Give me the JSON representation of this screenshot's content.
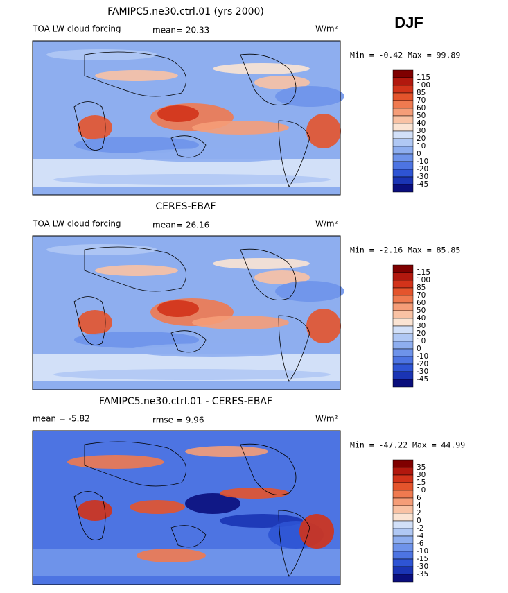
{
  "season": "DJF",
  "panels": [
    {
      "title": "FAMIPC5.ne30.ctrl.01 (yrs 2000)",
      "left_label": "TOA LW cloud forcing",
      "center_label": "mean=  20.33",
      "units": "W/m²",
      "minmax": "Min =  -0.42 Max =  99.89",
      "colorbar": {
        "labels": [
          "115",
          "100",
          "85",
          "70",
          "60",
          "50",
          "40",
          "30",
          "20",
          "10",
          "0",
          "-10",
          "-20",
          "-30",
          "-45"
        ],
        "colors": [
          "#7f0000",
          "#b2180e",
          "#d2331a",
          "#e4542c",
          "#ef7a50",
          "#f59d78",
          "#f9c2a4",
          "#fbe4d3",
          "#d2e0f8",
          "#b0c8f4",
          "#8eaeef",
          "#6e93ea",
          "#4d74e2",
          "#2e54d4",
          "#1a34b4",
          "#0a0e7c"
        ]
      }
    },
    {
      "title": "CERES-EBAF",
      "left_label": "TOA LW cloud forcing",
      "center_label": "mean=  26.16",
      "units": "W/m²",
      "minmax": "Min =  -2.16 Max =  85.85",
      "colorbar": {
        "labels": [
          "115",
          "100",
          "85",
          "70",
          "60",
          "50",
          "40",
          "30",
          "20",
          "10",
          "0",
          "-10",
          "-20",
          "-30",
          "-45"
        ],
        "colors": [
          "#7f0000",
          "#b2180e",
          "#d2331a",
          "#e4542c",
          "#ef7a50",
          "#f59d78",
          "#f9c2a4",
          "#fbe4d3",
          "#d2e0f8",
          "#b0c8f4",
          "#8eaeef",
          "#6e93ea",
          "#4d74e2",
          "#2e54d4",
          "#1a34b4",
          "#0a0e7c"
        ]
      }
    },
    {
      "title": "FAMIPC5.ne30.ctrl.01 - CERES-EBAF",
      "left_label": "mean =  -5.82",
      "center_label": "rmse =   9.96",
      "units": "W/m²",
      "minmax": "Min = -47.22 Max =  44.99",
      "colorbar": {
        "labels": [
          "35",
          "30",
          "15",
          "10",
          "6",
          "4",
          "2",
          "0",
          "-2",
          "-4",
          "-6",
          "-10",
          "-15",
          "-30",
          "-35"
        ],
        "colors": [
          "#7f0000",
          "#b2180e",
          "#d2331a",
          "#e4542c",
          "#ef7a50",
          "#f59d78",
          "#f9c2a4",
          "#fbe4d3",
          "#d2e0f8",
          "#b0c8f4",
          "#8eaeef",
          "#6e93ea",
          "#4d74e2",
          "#2e54d4",
          "#1a34b4",
          "#0a0e7c"
        ]
      }
    }
  ]
}
